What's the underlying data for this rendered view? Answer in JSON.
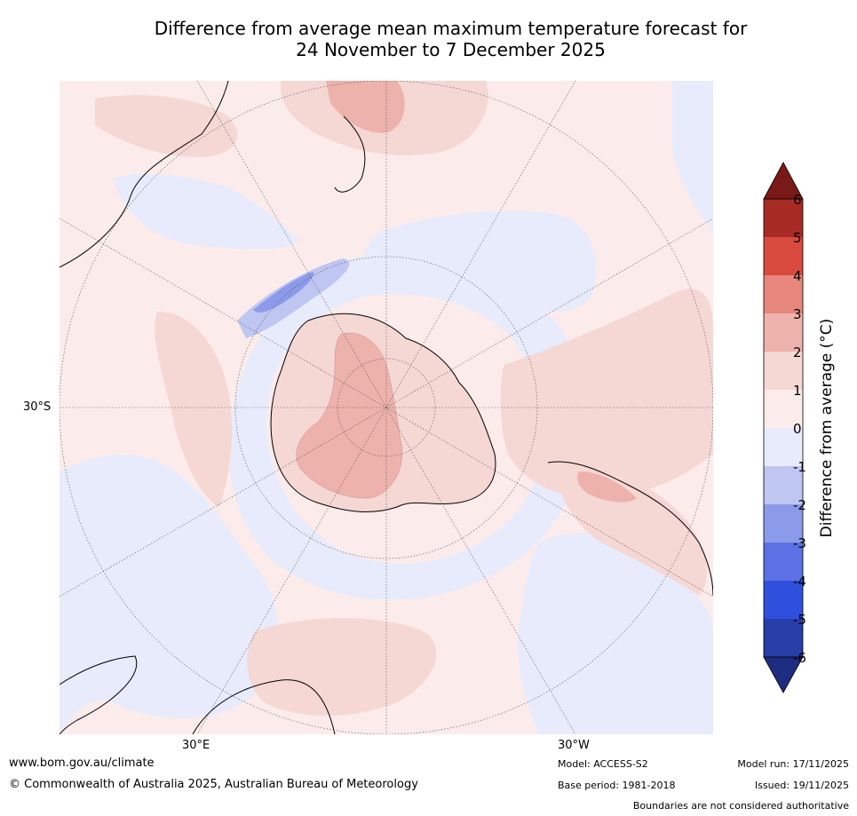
{
  "title_line1": "Difference from average mean maximum temperature forecast for",
  "title_line2": "24 November to 7 December 2025",
  "map_labels": {
    "lat_30s": "30°S",
    "lon_30e": "30°E",
    "lon_30w": "30°W"
  },
  "colorbar": {
    "label": "Difference from average (°C)",
    "ticks": [
      "6",
      "5",
      "4",
      "3",
      "2",
      "1",
      "0",
      "-1",
      "-2",
      "-3",
      "-4",
      "-5",
      "-6"
    ],
    "colors": {
      "above_6": "#7a1a18",
      "5_6": "#a82a25",
      "4_5": "#d94a3f",
      "3_4": "#e8877e",
      "2_3": "#edb2ac",
      "1_2": "#f5d7d4",
      "0_1": "#fbeceb",
      "m1_0": "#e8ebfb",
      "m2_m1": "#bfc6f2",
      "m3_m2": "#8b9bea",
      "m4_m3": "#5c72e4",
      "m5_m4": "#2f4fdd",
      "m6_m5": "#283ea8",
      "below_m6": "#1e2d80"
    }
  },
  "footer": {
    "website": "www.bom.gov.au/climate",
    "copyright": "© Commonwealth of Australia 2025, Australian Bureau of Meteorology",
    "model": "Model: ACCESS-S2",
    "base_period": "Base period: 1981-2018",
    "model_run": "Model run: 17/11/2025",
    "issued": "Issued: 19/11/2025",
    "disclaimer": "Boundaries are not considered authoritative"
  }
}
